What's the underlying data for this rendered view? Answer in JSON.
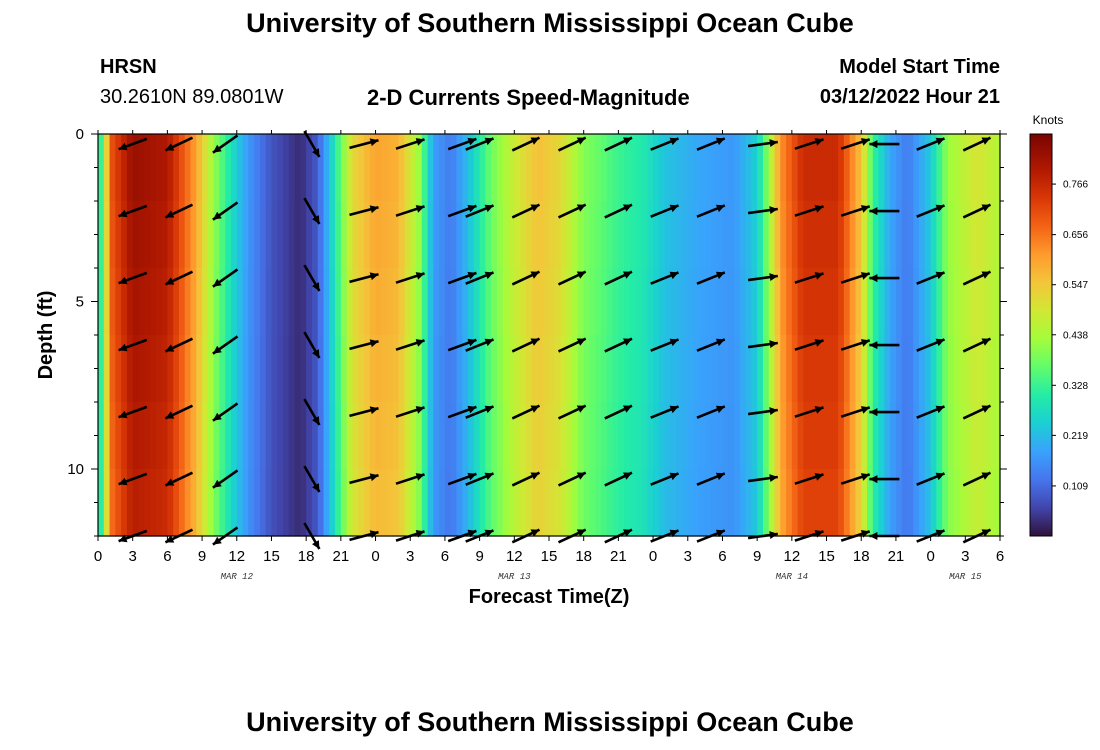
{
  "header": {
    "main_title": "University of Southern Mississippi Ocean Cube",
    "station": "HRSN",
    "coords": "30.2610N  89.0801W",
    "chart_title": "2-D Currents Speed-Magnitude",
    "model_label": "Model Start Time",
    "model_time": "03/12/2022 Hour 21",
    "bottom_title": "University of Southern Mississippi Ocean Cube"
  },
  "chart_data": {
    "type": "heatmap",
    "title": "2-D Currents Speed-Magnitude",
    "xlabel": "Forecast Time(Z)",
    "ylabel": "Depth (ft)",
    "x_ticks": [
      "0",
      "3",
      "6",
      "9",
      "12",
      "15",
      "18",
      "21",
      "0",
      "3",
      "6",
      "9",
      "12",
      "15",
      "18",
      "21",
      "0",
      "3",
      "6",
      "9",
      "12",
      "15",
      "18",
      "21",
      "0",
      "3",
      "6"
    ],
    "x_range_hours": [
      0,
      78
    ],
    "date_labels": [
      {
        "label": "MAR 12",
        "hour": 12
      },
      {
        "label": "MAR 13",
        "hour": 36
      },
      {
        "label": "MAR 14",
        "hour": 60
      },
      {
        "label": "MAR 15",
        "hour": 75
      }
    ],
    "y_ticks": [
      0,
      5,
      10
    ],
    "y_range": [
      0,
      12
    ],
    "colorbar": {
      "unit": "Knots",
      "ticks": [
        0.766,
        0.656,
        0.547,
        0.438,
        0.328,
        0.219,
        0.109
      ],
      "range": [
        0.0,
        0.875
      ]
    },
    "speed_profile_knots": [
      {
        "hour": 0,
        "value": 0.22
      },
      {
        "hour": 0.6,
        "value": 0.48
      },
      {
        "hour": 1.2,
        "value": 0.7
      },
      {
        "hour": 3,
        "value": 0.83
      },
      {
        "hour": 6,
        "value": 0.8
      },
      {
        "hour": 8.5,
        "value": 0.6
      },
      {
        "hour": 10,
        "value": 0.42
      },
      {
        "hour": 11.5,
        "value": 0.28
      },
      {
        "hour": 13,
        "value": 0.17
      },
      {
        "hour": 15,
        "value": 0.08
      },
      {
        "hour": 17.5,
        "value": 0.03
      },
      {
        "hour": 19,
        "value": 0.09
      },
      {
        "hour": 20.5,
        "value": 0.3
      },
      {
        "hour": 22,
        "value": 0.52
      },
      {
        "hour": 24,
        "value": 0.6
      },
      {
        "hour": 26,
        "value": 0.58
      },
      {
        "hour": 27.8,
        "value": 0.42
      },
      {
        "hour": 29,
        "value": 0.18
      },
      {
        "hour": 30.5,
        "value": 0.13
      },
      {
        "hour": 32,
        "value": 0.22
      },
      {
        "hour": 34,
        "value": 0.38
      },
      {
        "hour": 36,
        "value": 0.48
      },
      {
        "hour": 38,
        "value": 0.56
      },
      {
        "hour": 40,
        "value": 0.52
      },
      {
        "hour": 42,
        "value": 0.4
      },
      {
        "hour": 45,
        "value": 0.33
      },
      {
        "hour": 47,
        "value": 0.3
      },
      {
        "hour": 49,
        "value": 0.23
      },
      {
        "hour": 52,
        "value": 0.19
      },
      {
        "hour": 55,
        "value": 0.17
      },
      {
        "hour": 57,
        "value": 0.25
      },
      {
        "hour": 58,
        "value": 0.42
      },
      {
        "hour": 59,
        "value": 0.62
      },
      {
        "hour": 61,
        "value": 0.76
      },
      {
        "hour": 64,
        "value": 0.76
      },
      {
        "hour": 66,
        "value": 0.55
      },
      {
        "hour": 67,
        "value": 0.33
      },
      {
        "hour": 68.5,
        "value": 0.19
      },
      {
        "hour": 70,
        "value": 0.13
      },
      {
        "hour": 72,
        "value": 0.24
      },
      {
        "hour": 73.5,
        "value": 0.42
      },
      {
        "hour": 76,
        "value": 0.5
      },
      {
        "hour": 78,
        "value": 0.45
      }
    ],
    "arrow_depths_ft": [
      0.3,
      2.3,
      4.3,
      6.3,
      8.3,
      10.3,
      12.0
    ],
    "arrows": [
      {
        "hour": 3,
        "angle_deg": 200
      },
      {
        "hour": 7,
        "angle_deg": 205
      },
      {
        "hour": 11,
        "angle_deg": 215
      },
      {
        "hour": 18.5,
        "angle_deg": 300
      },
      {
        "hour": 23,
        "angle_deg": 15
      },
      {
        "hour": 27,
        "angle_deg": 18
      },
      {
        "hour": 31.5,
        "angle_deg": 20
      },
      {
        "hour": 33,
        "angle_deg": 22
      },
      {
        "hour": 37,
        "angle_deg": 25
      },
      {
        "hour": 41,
        "angle_deg": 25
      },
      {
        "hour": 45,
        "angle_deg": 25
      },
      {
        "hour": 49,
        "angle_deg": 22
      },
      {
        "hour": 53,
        "angle_deg": 22
      },
      {
        "hour": 57.5,
        "angle_deg": 8
      },
      {
        "hour": 61.5,
        "angle_deg": 18
      },
      {
        "hour": 65.5,
        "angle_deg": 18
      },
      {
        "hour": 68,
        "angle_deg": 180
      },
      {
        "hour": 72,
        "angle_deg": 22
      },
      {
        "hour": 76,
        "angle_deg": 25
      }
    ]
  }
}
